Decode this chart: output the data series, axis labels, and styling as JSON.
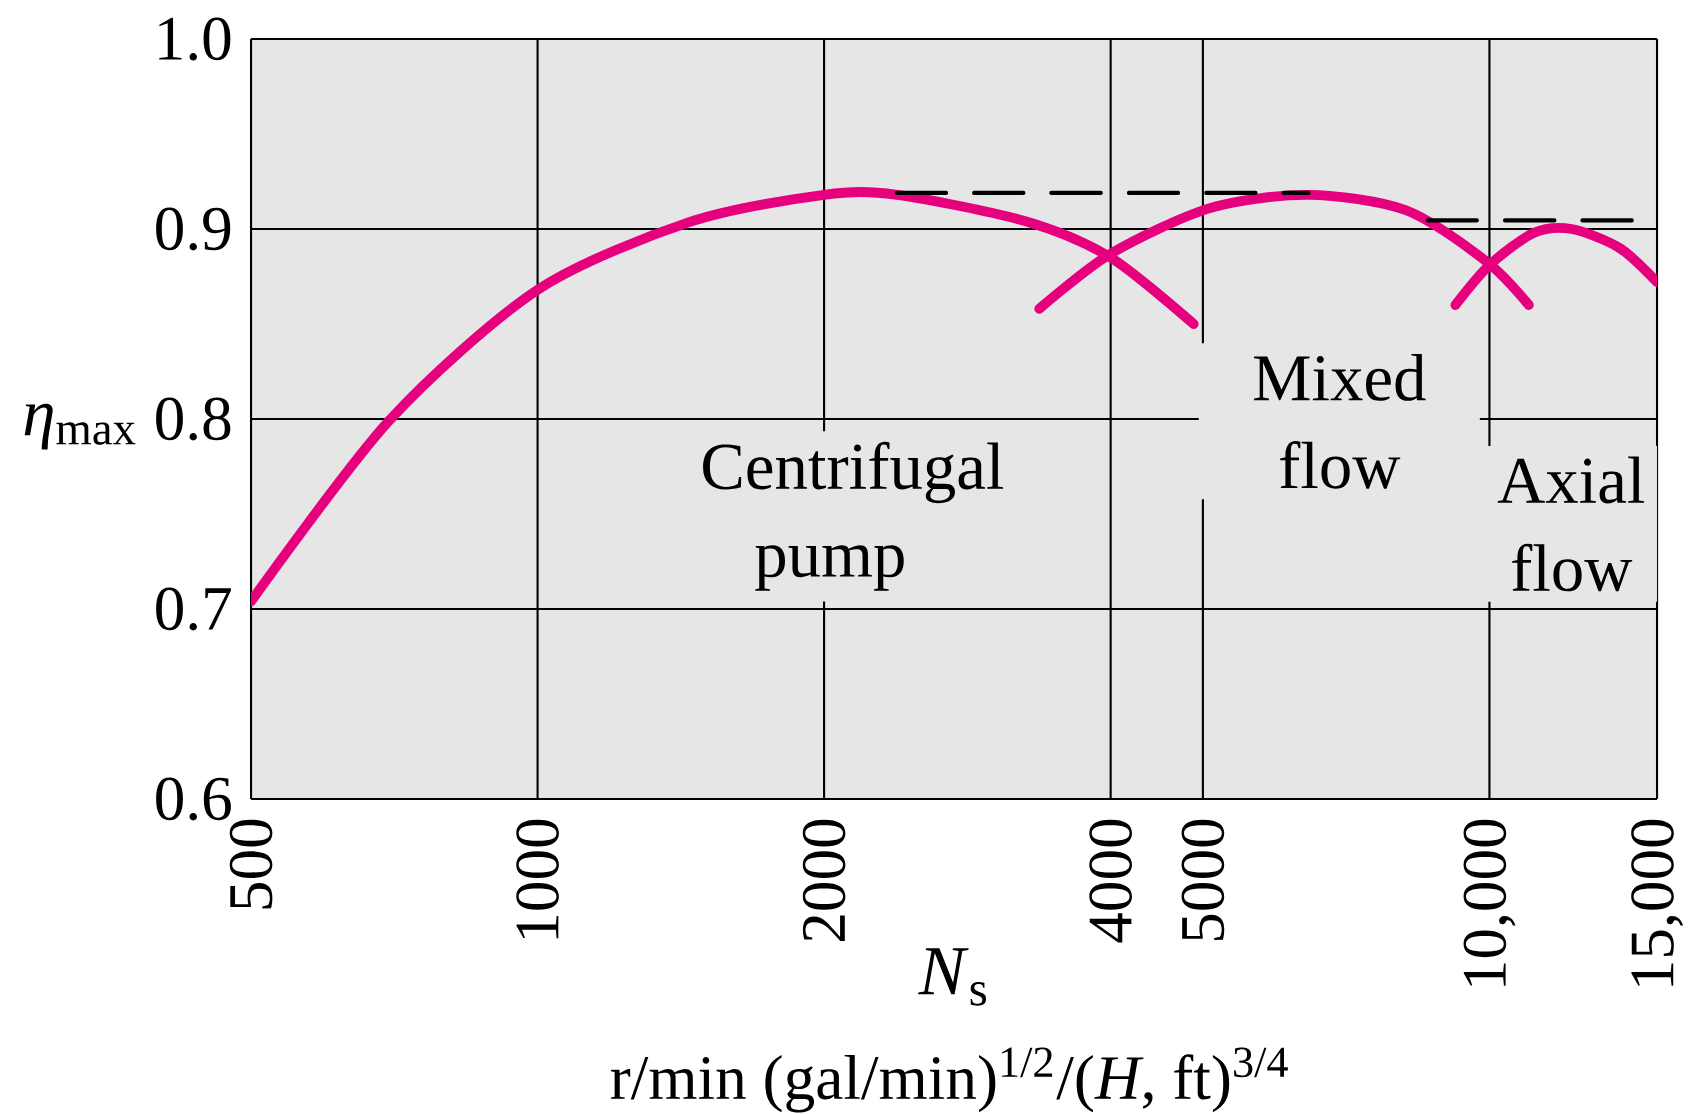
{
  "chart_data": {
    "type": "line",
    "xlabel": "*N*$_{s}$",
    "ylabel": "*η*$_{max}$",
    "log": "x",
    "grid": true,
    "xlim": [
      500,
      15000
    ],
    "ylim": [
      0.6,
      1.0
    ],
    "xticks": [
      500,
      1000,
      2000,
      4000,
      5000,
      {
        "value": 10000,
        "label": "10,000"
      },
      {
        "value": 15000,
        "label": "15,000"
      }
    ],
    "yticks": [
      0.6,
      0.7,
      0.8,
      0.9,
      {
        "value": 1.0,
        "label": "1.0"
      }
    ],
    "series": [
      {
        "color": "#e6007e",
        "line_style": "solid",
        "x": [
          500,
          698,
          1000,
          1451,
          2000,
          2385,
          3262,
          4000,
          4890
        ],
        "values": [
          0.704,
          0.799,
          0.868,
          0.904,
          0.918,
          0.918,
          0.904,
          0.885,
          0.85
        ]
      },
      {
        "color": "#e6007e",
        "line_style": "solid",
        "x": [
          3366,
          4000,
          5085,
          6455,
          8160,
          9924,
          11000
        ],
        "values": [
          0.858,
          0.887,
          0.911,
          0.918,
          0.91,
          0.883,
          0.86
        ]
      },
      {
        "color": "#e6007e",
        "line_style": "solid",
        "x": [
          9210,
          10000,
          11140,
          12200,
          13700,
          15000
        ],
        "values": [
          0.86,
          0.881,
          0.898,
          0.9,
          0.89,
          0.872
        ]
      },
      {
        "color": "#000000",
        "line_style": "dashed",
        "x": [
          2385,
          6455
        ],
        "values": [
          0.919,
          0.919
        ]
      },
      {
        "color": "#000000",
        "line_style": "dashed",
        "x": [
          8615,
          15000
        ],
        "values": [
          0.9045,
          0.9045
        ]
      }
    ],
    "annotations": [
      "Centrifugal pump",
      "Mixed flow",
      "Axial flow",
      "r/min (gal/min)$^{1/2}$/(*H*, ft)$^{3/4}$"
    ]
  }
}
